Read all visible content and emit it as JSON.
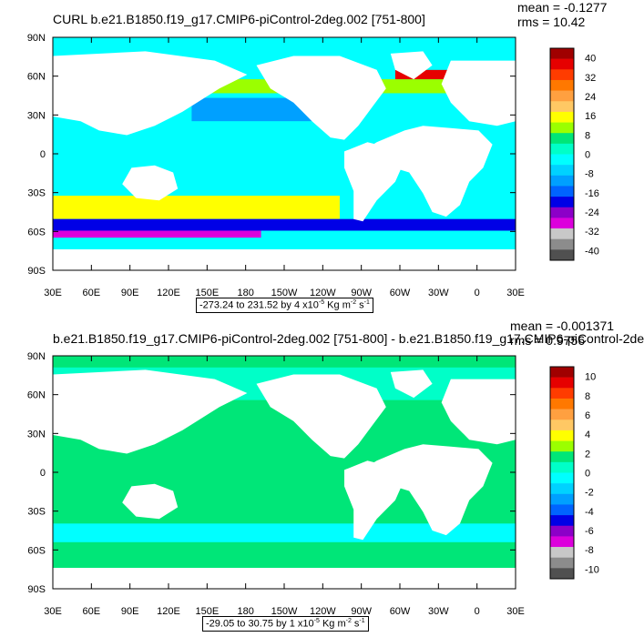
{
  "chart_data": [
    {
      "type": "heatmap",
      "title": "CURL b.e21.B1850.f19_g17.CMIP6-piControl-2deg.002 [751-800]",
      "stats": {
        "mean": "mean = -0.1277",
        "rms": "rms = 10.42"
      },
      "range_label": {
        "prefix": "-273.24 to 231.52 by 4 x10",
        "exp": "-5",
        "unit": " Kg m",
        "unit_exp": "-2",
        "unit2": " s",
        "unit2_exp": "-1"
      },
      "x_ticks": [
        "30E",
        "60E",
        "90E",
        "120E",
        "150E",
        "180",
        "150W",
        "120W",
        "90W",
        "60W",
        "30W",
        "0",
        "30E"
      ],
      "y_ticks": [
        "90N",
        "60N",
        "30N",
        "0",
        "30S",
        "60S",
        "90S"
      ],
      "colorbar": {
        "labels": [
          "40",
          "32",
          "24",
          "16",
          "8",
          "0",
          "-8",
          "-16",
          "-24",
          "-32",
          "-40"
        ],
        "colors": [
          "#a00000",
          "#e60000",
          "#ff3c00",
          "#ff7800",
          "#ffa040",
          "#ffc864",
          "#ffff00",
          "#9bff00",
          "#00e678",
          "#00ffc8",
          "#00ffff",
          "#00d2ff",
          "#00a0ff",
          "#0064ff",
          "#0000e6",
          "#8c00c8",
          "#dc00dc",
          "#c8c8c8",
          "#8c8c8c",
          "#505050"
        ]
      }
    },
    {
      "type": "heatmap",
      "title": "b.e21.B1850.f19_g17.CMIP6-piControl-2deg.002 [751-800] - b.e21.B1850.f19_g17.CMIP6-piControl-2de",
      "stats": {
        "mean": "mean = -0.001371",
        "rms": "rms = 0.9756"
      },
      "range_label": {
        "prefix": "-29.05 to 30.75 by 1 x10",
        "exp": "-5",
        "unit": " Kg m",
        "unit_exp": "-2",
        "unit2": " s",
        "unit2_exp": "-1"
      },
      "x_ticks": [
        "30E",
        "60E",
        "90E",
        "120E",
        "150E",
        "180",
        "150W",
        "120W",
        "90W",
        "60W",
        "30W",
        "0",
        "30E"
      ],
      "y_ticks": [
        "90N",
        "60N",
        "30N",
        "0",
        "30S",
        "60S",
        "90S"
      ],
      "colorbar": {
        "labels": [
          "10",
          "8",
          "6",
          "4",
          "2",
          "0",
          "-2",
          "-4",
          "-6",
          "-8",
          "-10"
        ],
        "colors": [
          "#a00000",
          "#e60000",
          "#ff3c00",
          "#ff7800",
          "#ffa040",
          "#ffc864",
          "#ffff00",
          "#9bff00",
          "#00e678",
          "#00ffc8",
          "#00ffff",
          "#00d2ff",
          "#00a0ff",
          "#0064ff",
          "#0000e6",
          "#8c00c8",
          "#dc00dc",
          "#c8c8c8",
          "#8c8c8c",
          "#505050"
        ]
      }
    }
  ]
}
